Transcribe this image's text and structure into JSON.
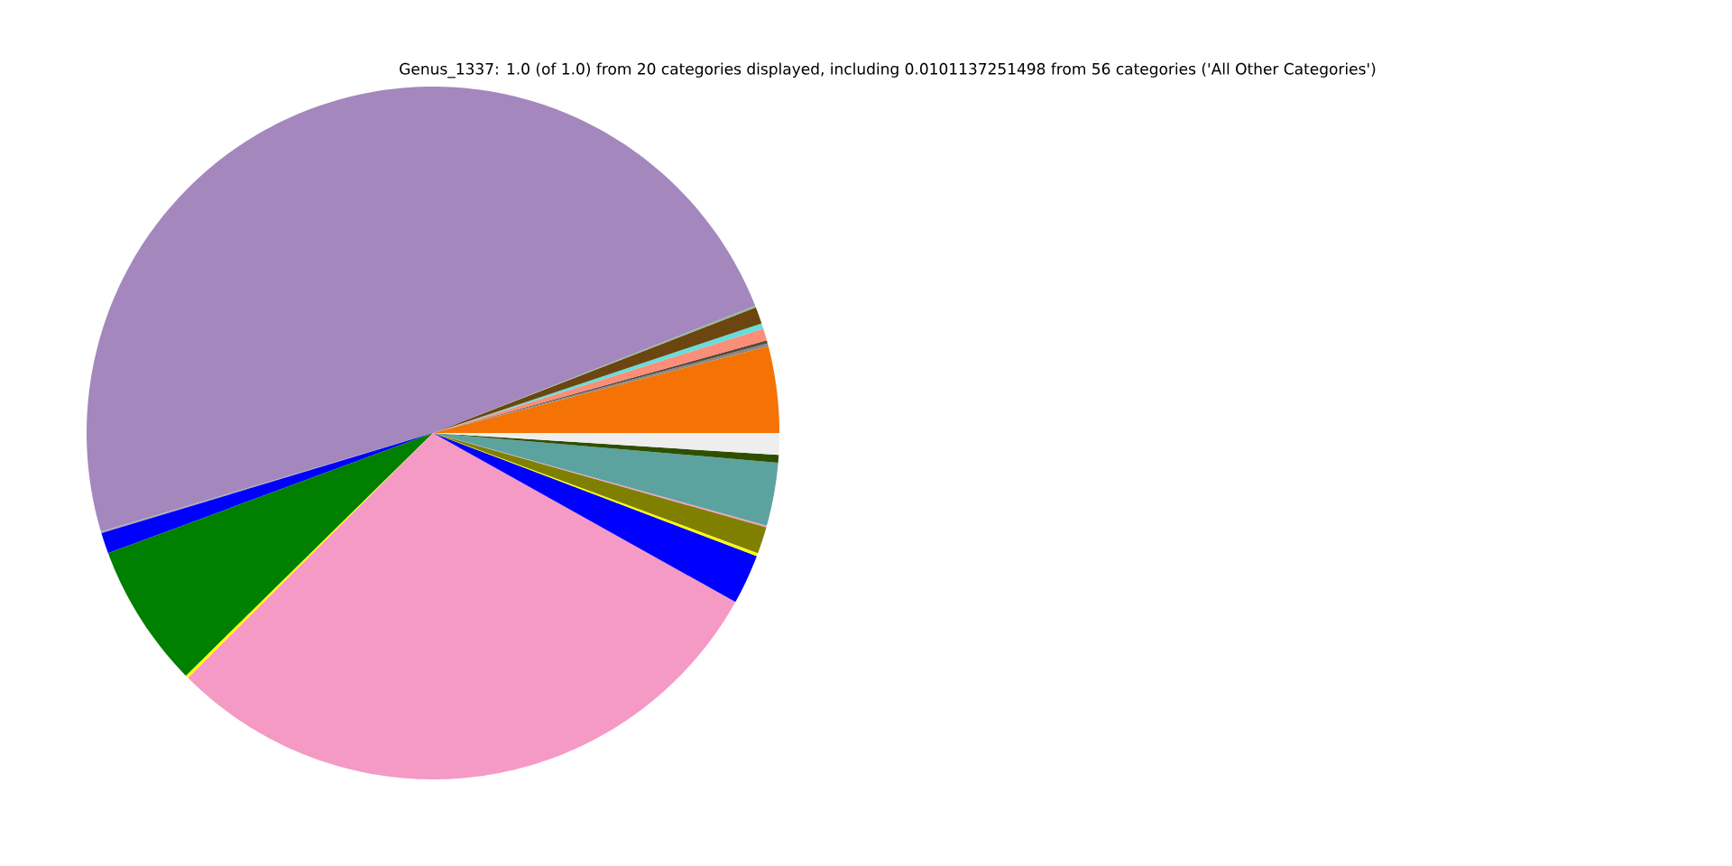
{
  "chart_data": {
    "type": "pie",
    "title": "Genus_1337: 1.0 (of 1.0) from 20 categories displayed, including 0.0101137251498 from 56 categories ('All Other Categories')",
    "categories": [
      null,
      null,
      null,
      null,
      null,
      null,
      null,
      null,
      null,
      null,
      null,
      null,
      null,
      null,
      null,
      null,
      null,
      null,
      null,
      null
    ],
    "values": [
      4.03,
      0.14,
      0.14,
      0.56,
      0.25,
      0.79,
      0.08,
      48.6,
      0.08,
      0.97,
      6.72,
      0.14,
      29.39,
      2.33,
      0.14,
      1.25,
      0.08,
      2.94,
      0.36,
      1.01
    ],
    "colors": [
      "#f47304",
      "#888888",
      "#5a4a3a",
      "#fa8e78",
      "#66dddd",
      "#6b4610",
      "#8fbc8f",
      "#a387bd",
      "#aaaaaa",
      "#0000ff",
      "#007f00",
      "#ffff00",
      "#f49ac4",
      "#0000ff",
      "#ffff00",
      "#808000",
      "#f49ac4",
      "#5ca3a0",
      "#2f4f00",
      "#eeeeee"
    ],
    "stacked": false
  }
}
